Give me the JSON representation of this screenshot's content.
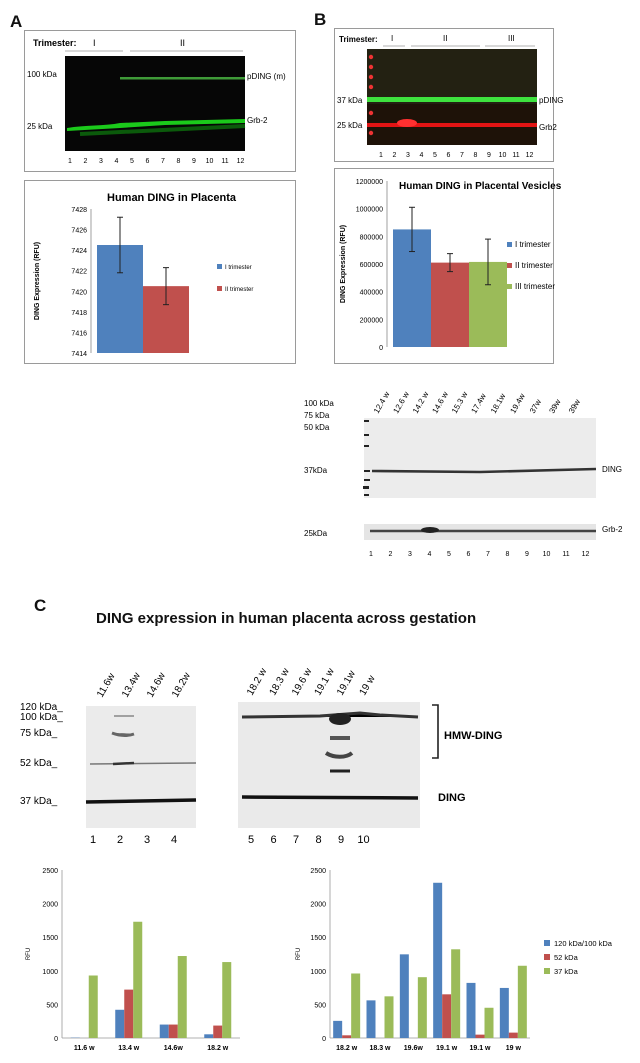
{
  "panelA": {
    "letter": "A",
    "blot": {
      "trimester_label": "Trimester:",
      "groups": [
        "I",
        "II"
      ],
      "markers": [
        "100 kDa",
        "25 kDa"
      ],
      "bands": [
        "pDING (m)",
        "Grb-2"
      ],
      "lanes": [
        "1",
        "2",
        "3",
        "4",
        "5",
        "6",
        "7",
        "8",
        "9",
        "10",
        "11",
        "12"
      ]
    },
    "chart_title": "Human DING in Placenta"
  },
  "panelB": {
    "letter": "B",
    "blot": {
      "trimester_label": "Trimester:",
      "groups": [
        "I",
        "II",
        "III"
      ],
      "markers": [
        "37 kDa",
        "25 kDa"
      ],
      "bands": [
        "pDING",
        "Grb2"
      ],
      "lanes": [
        "1",
        "2",
        "3",
        "4",
        "5",
        "6",
        "7",
        "8",
        "9",
        "10",
        "11",
        "12"
      ]
    },
    "chart_title": "Human DING in Placental Vesicles",
    "blot2": {
      "weeks": [
        "12.4 w",
        "12.6 w",
        "14.2 w",
        "14.6 w",
        "15.3 w",
        "17.4w",
        "18.1w",
        "19.4w",
        "37w",
        "39w",
        "39w"
      ],
      "markers": [
        "100 kDa",
        "75 kDa",
        "50 kDa",
        "37kDa"
      ],
      "marker_low": "25kDa",
      "bands": [
        "DING",
        "Grb-2"
      ],
      "lanes": [
        "1",
        "2",
        "3",
        "4",
        "5",
        "6",
        "7",
        "8",
        "9",
        "10",
        "11",
        "12"
      ]
    }
  },
  "panelC": {
    "letter": "C",
    "title": "DING expression in human placenta across gestation",
    "blot_left": {
      "weeks": [
        "11.6w",
        "13.4w",
        "14.6w",
        "18.2w"
      ],
      "markers": [
        "120 kDa_",
        "100 kDa_",
        "75 kDa_",
        "52 kDa_",
        "37 kDa_"
      ],
      "lanes": [
        "1",
        "2",
        "3",
        "4"
      ]
    },
    "blot_right": {
      "weeks": [
        "18.2 w",
        "18.3 w",
        "19.6 w",
        "19.1 w",
        "19.1w",
        "19 w"
      ],
      "lanes": [
        "5",
        "6",
        "7",
        "8",
        "9",
        "10"
      ],
      "bands": [
        "HMW-DING",
        "DING"
      ]
    }
  },
  "colors": {
    "blue": "#4f81bd",
    "red": "#c0504d",
    "green": "#9bbb59"
  },
  "chart_data": [
    {
      "type": "bar",
      "title": "Human DING in Placenta",
      "ylabel": "DING Expression (RFU)",
      "ylim": [
        7414,
        7428
      ],
      "yticks": [
        7414,
        7416,
        7418,
        7420,
        7422,
        7424,
        7426,
        7428
      ],
      "series": [
        {
          "name": "I trimester",
          "value": 7424.5,
          "error": 2.7,
          "color": "#4f81bd"
        },
        {
          "name": "II trimester",
          "value": 7420.5,
          "error": 1.8,
          "color": "#c0504d"
        }
      ]
    },
    {
      "type": "bar",
      "title": "Human DING in Placental Vesicles",
      "ylabel": "DING Expression (RFU)",
      "ylim": [
        0,
        1200000
      ],
      "yticks": [
        0,
        200000,
        400000,
        600000,
        800000,
        1000000,
        1200000
      ],
      "series": [
        {
          "name": "I trimester",
          "value": 850000,
          "error": 160000,
          "color": "#4f81bd"
        },
        {
          "name": "II trimester",
          "value": 610000,
          "error": 65000,
          "color": "#c0504d"
        },
        {
          "name": "III trimester",
          "value": 615000,
          "error": 165000,
          "color": "#9bbb59"
        }
      ]
    },
    {
      "type": "bar",
      "ylabel": "RFU",
      "ylim": [
        0,
        2500
      ],
      "yticks": [
        0,
        500,
        1000,
        1500,
        2000,
        2500
      ],
      "categories": [
        "11.6 w",
        "13.4 w",
        "14.6w",
        "18.2 w"
      ],
      "series": [
        {
          "values": [
            5,
            420,
            200,
            55
          ],
          "color": "#4f81bd"
        },
        {
          "values": [
            0,
            720,
            200,
            185
          ],
          "color": "#c0504d"
        },
        {
          "values": [
            930,
            1730,
            1220,
            1130
          ],
          "color": "#9bbb59"
        }
      ]
    },
    {
      "type": "bar",
      "ylabel": "RFU",
      "ylim": [
        0,
        2500
      ],
      "yticks": [
        0,
        500,
        1000,
        1500,
        2000,
        2500
      ],
      "categories": [
        "18.2 w",
        "18.3 w",
        "19.6w",
        "19.1 w",
        "19.1 w",
        "19 w"
      ],
      "series": [
        {
          "name": "120 kDa/100 kDa",
          "values": [
            255,
            560,
            1245,
            2310,
            820,
            745
          ],
          "color": "#4f81bd"
        },
        {
          "name": "52 kDa",
          "values": [
            40,
            0,
            0,
            650,
            50,
            80
          ],
          "color": "#c0504d"
        },
        {
          "name": "37 kDa",
          "values": [
            960,
            620,
            905,
            1320,
            450,
            1075
          ],
          "color": "#9bbb59"
        }
      ]
    }
  ]
}
